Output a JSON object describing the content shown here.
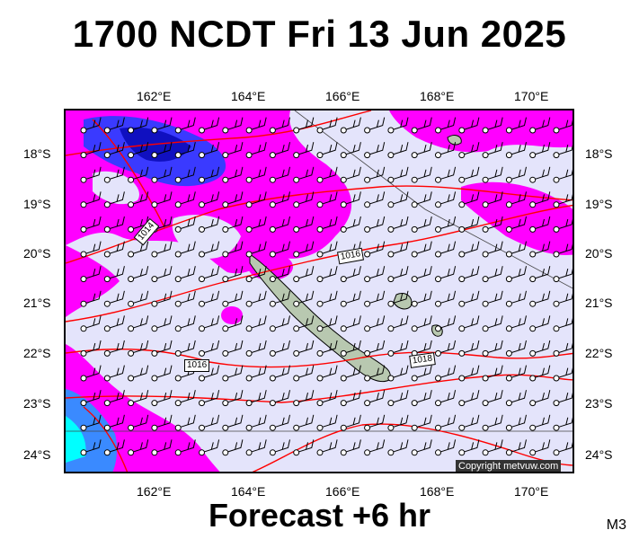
{
  "title": "1700 NCDT Fri 13 Jun 2025",
  "footer": "Forecast +6 hr",
  "model_code": "M3",
  "copyright": "Copyright metvuw.com",
  "longitude_labels": [
    "162°E",
    "164°E",
    "166°E",
    "168°E",
    "170°E"
  ],
  "latitude_labels": [
    "18°S",
    "19°S",
    "20°S",
    "21°S",
    "22°S",
    "23°S",
    "24°S"
  ],
  "isobar_labels": [
    "1014",
    "1016",
    "1016",
    "1018"
  ],
  "colors": {
    "background_precip": "#e4e4fb",
    "heavy": "#ff00ff",
    "very_heavy": "#1a1aff",
    "cyan": "#00ffff",
    "isobar": "#ff0000",
    "land": "#b8c8b0"
  }
}
